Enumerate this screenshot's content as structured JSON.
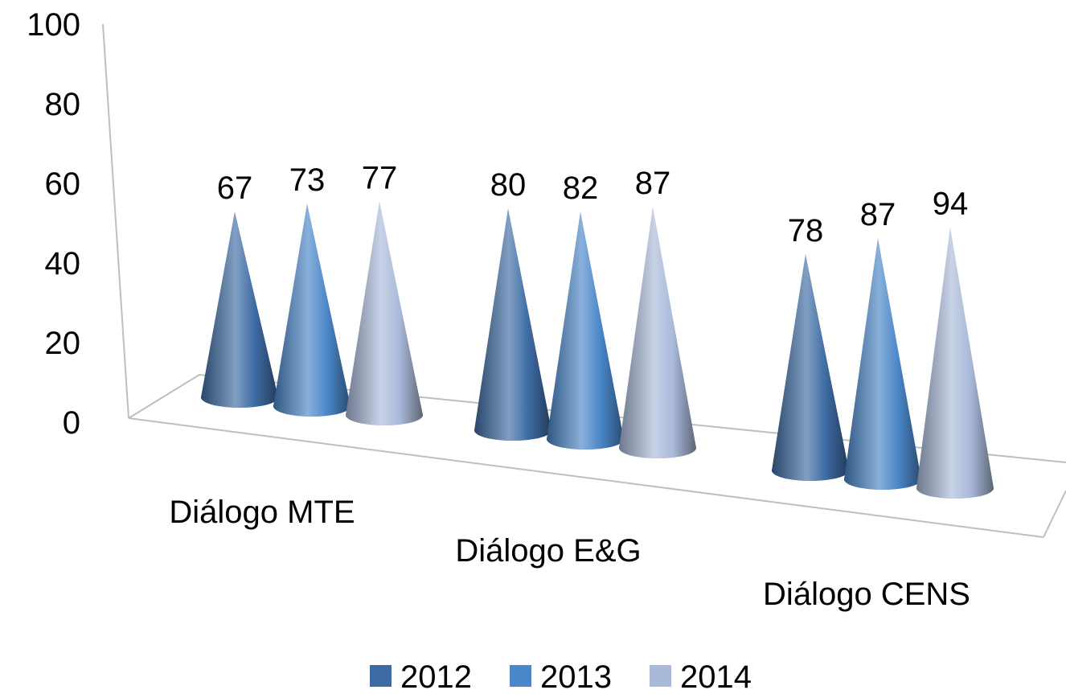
{
  "chart_data": {
    "type": "bar",
    "subtype": "3d-cone",
    "title": "",
    "xlabel": "",
    "ylabel": "",
    "ylim": [
      0,
      100
    ],
    "yticks": [
      "0",
      "20",
      "40",
      "60",
      "80",
      "100"
    ],
    "categories": [
      "Diálogo MTE",
      "Diálogo E&G",
      "Diálogo CENS"
    ],
    "series": [
      {
        "name": "2012",
        "color": "#3d6ba3",
        "values": [
          67,
          80,
          78
        ]
      },
      {
        "name": "2013",
        "color": "#4a86c8",
        "values": [
          73,
          82,
          87
        ]
      },
      {
        "name": "2014",
        "color": "#a9b9d9",
        "values": [
          77,
          87,
          94
        ]
      }
    ],
    "data_labels": true,
    "legend": "bottom",
    "grid": false
  }
}
